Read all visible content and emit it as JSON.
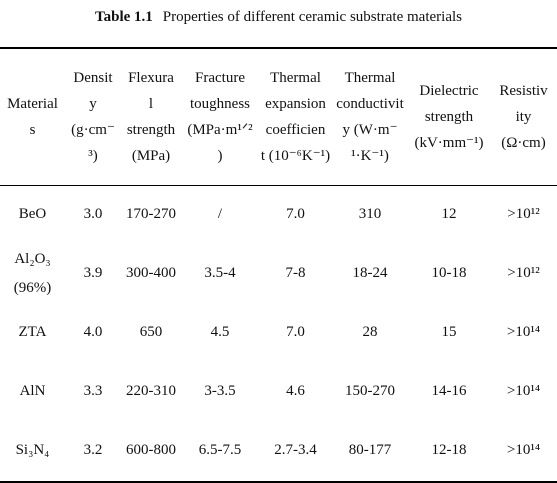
{
  "caption": {
    "number": "Table 1.1",
    "title": "Properties of different ceramic substrate materials"
  },
  "headers": [
    {
      "lines": [
        "Material",
        "s"
      ]
    },
    {
      "lines": [
        "Densit",
        "y",
        "(g·cm⁻",
        "³)"
      ]
    },
    {
      "lines": [
        "Flexura",
        "l",
        "strength",
        "(MPa)"
      ]
    },
    {
      "lines": [
        "Fracture",
        "toughness",
        "(MPa·m¹ᐟ²",
        ")"
      ]
    },
    {
      "lines": [
        "Thermal",
        "expansion",
        "coefficien",
        "t (10⁻⁶K⁻¹)"
      ]
    },
    {
      "lines": [
        "Thermal",
        "conductivit",
        "y (W·m⁻",
        "¹·K⁻¹)"
      ]
    },
    {
      "lines": [
        "Dielectric",
        "strength",
        "(kV·mm⁻¹)"
      ]
    },
    {
      "lines": [
        "Resistiv",
        "ity",
        "(Ω·cm)"
      ]
    }
  ],
  "rows": [
    {
      "material": "BeO",
      "density": "3.0",
      "flexural": "170-270",
      "fracture": "/",
      "expansion": "7.0",
      "conductivity": "310",
      "dielectric": "12",
      "resistivity": ">10¹²"
    },
    {
      "material": "Al₂O₃ (96%)",
      "density": "3.9",
      "flexural": "300-400",
      "fracture": "3.5-4",
      "expansion": "7-8",
      "conductivity": "18-24",
      "dielectric": "10-18",
      "resistivity": ">10¹²"
    },
    {
      "material": "ZTA",
      "density": "4.0",
      "flexural": "650",
      "fracture": "4.5",
      "expansion": "7.0",
      "conductivity": "28",
      "dielectric": "15",
      "resistivity": ">10¹⁴"
    },
    {
      "material": "AlN",
      "density": "3.3",
      "flexural": "220-310",
      "fracture": "3-3.5",
      "expansion": "4.6",
      "conductivity": "150-270",
      "dielectric": "14-16",
      "resistivity": ">10¹⁴"
    },
    {
      "material": "Si₃N₄",
      "density": "3.2",
      "flexural": "600-800",
      "fracture": "6.5-7.5",
      "expansion": "2.7-3.4",
      "conductivity": "80-177",
      "dielectric": "12-18",
      "resistivity": ">10¹⁴"
    }
  ]
}
